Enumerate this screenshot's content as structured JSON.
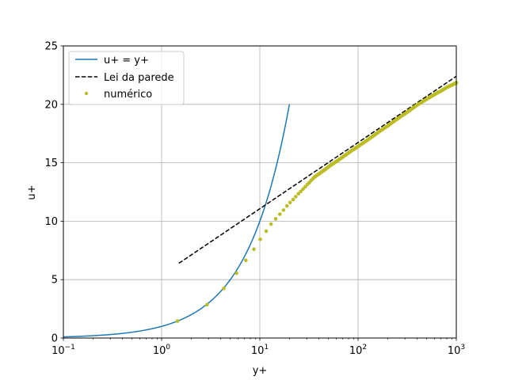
{
  "chart_data": {
    "type": "line",
    "title": "",
    "xlabel": "y+",
    "ylabel": "u+",
    "xscale": "log",
    "xlim": [
      0.1,
      1000
    ],
    "ylim": [
      0,
      25
    ],
    "grid": true,
    "legend_position": "top-left",
    "x_ticks": [
      {
        "value": 0.1,
        "base": "10",
        "exp": "−1"
      },
      {
        "value": 1,
        "base": "10",
        "exp": "0"
      },
      {
        "value": 10,
        "base": "10",
        "exp": "1"
      },
      {
        "value": 100,
        "base": "10",
        "exp": "2"
      },
      {
        "value": 1000,
        "base": "10",
        "exp": "3"
      }
    ],
    "y_ticks": [
      0,
      5,
      10,
      15,
      20,
      25
    ],
    "series": [
      {
        "name": "u+ = y+",
        "style": "solid",
        "color": "#1f77b4",
        "relation": "u+ = y+",
        "x_range": [
          0.1,
          20
        ]
      },
      {
        "name": "Lei da parede",
        "style": "dashed",
        "color": "#000000",
        "x": [
          1.5,
          1000
        ],
        "y": [
          6.4,
          22.4
        ]
      },
      {
        "name": "numérico",
        "style": "points",
        "color": "#bcbd22",
        "x": [
          1.45,
          2.9,
          4.3,
          5.8,
          7.2,
          8.7,
          10.1,
          11.6,
          13.0,
          14.5,
          16.0,
          17.4,
          18.9,
          20.3,
          21.8,
          23.2,
          24.7,
          26.1,
          27.6,
          29.0,
          30.5,
          31.9,
          33.4,
          34.8,
          36.3,
          40,
          45,
          50,
          55,
          60,
          65,
          70,
          80,
          90,
          100,
          120,
          140,
          160,
          180,
          200,
          250,
          300,
          350,
          400,
          500,
          600,
          700,
          800,
          900,
          1000
        ],
        "y": [
          1.45,
          2.85,
          4.25,
          5.55,
          6.65,
          7.6,
          8.45,
          9.15,
          9.75,
          10.2,
          10.6,
          10.95,
          11.3,
          11.6,
          11.85,
          12.1,
          12.35,
          12.55,
          12.75,
          12.95,
          13.15,
          13.3,
          13.5,
          13.65,
          13.8,
          14.05,
          14.35,
          14.65,
          14.9,
          15.1,
          15.3,
          15.5,
          15.85,
          16.15,
          16.4,
          16.85,
          17.25,
          17.6,
          17.9,
          18.15,
          18.75,
          19.2,
          19.6,
          19.95,
          20.45,
          20.85,
          21.15,
          21.45,
          21.65,
          21.85
        ]
      }
    ]
  }
}
